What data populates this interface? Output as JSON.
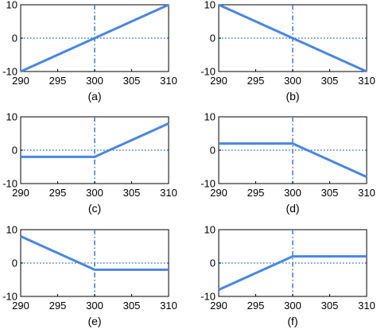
{
  "chart_data": [
    {
      "type": "line",
      "caption": "(a)",
      "xlim": [
        290,
        310
      ],
      "ylim": [
        -10,
        10
      ],
      "xticks": [
        290,
        295,
        300,
        305,
        310
      ],
      "yticks": [
        -10,
        0,
        10
      ],
      "reference_lines": {
        "h": 0,
        "v": 300
      },
      "series": [
        {
          "x": [
            290,
            310
          ],
          "y": [
            -10,
            10
          ]
        }
      ]
    },
    {
      "type": "line",
      "caption": "(b)",
      "xlim": [
        290,
        310
      ],
      "ylim": [
        -10,
        10
      ],
      "xticks": [
        290,
        295,
        300,
        305,
        310
      ],
      "yticks": [
        -10,
        0,
        10
      ],
      "reference_lines": {
        "h": 0,
        "v": 300
      },
      "series": [
        {
          "x": [
            290,
            310
          ],
          "y": [
            10,
            -10
          ]
        }
      ]
    },
    {
      "type": "line",
      "caption": "(c)",
      "xlim": [
        290,
        310
      ],
      "ylim": [
        -10,
        10
      ],
      "xticks": [
        290,
        295,
        300,
        305,
        310
      ],
      "yticks": [
        -10,
        0,
        10
      ],
      "reference_lines": {
        "h": 0,
        "v": 300
      },
      "series": [
        {
          "x": [
            290,
            300,
            310
          ],
          "y": [
            -2,
            -2,
            8
          ]
        }
      ]
    },
    {
      "type": "line",
      "caption": "(d)",
      "xlim": [
        290,
        310
      ],
      "ylim": [
        -10,
        10
      ],
      "xticks": [
        290,
        295,
        300,
        305,
        310
      ],
      "yticks": [
        -10,
        0,
        10
      ],
      "reference_lines": {
        "h": 0,
        "v": 300
      },
      "series": [
        {
          "x": [
            290,
            300,
            310
          ],
          "y": [
            2,
            2,
            -8
          ]
        }
      ]
    },
    {
      "type": "line",
      "caption": "(e)",
      "xlim": [
        290,
        310
      ],
      "ylim": [
        -10,
        10
      ],
      "xticks": [
        290,
        295,
        300,
        305,
        310
      ],
      "yticks": [
        -10,
        0,
        10
      ],
      "reference_lines": {
        "h": 0,
        "v": 300
      },
      "series": [
        {
          "x": [
            290,
            300,
            310
          ],
          "y": [
            8,
            -2,
            -2
          ]
        }
      ]
    },
    {
      "type": "line",
      "caption": "(f)",
      "xlim": [
        290,
        310
      ],
      "ylim": [
        -10,
        10
      ],
      "xticks": [
        290,
        295,
        300,
        305,
        310
      ],
      "yticks": [
        -10,
        0,
        10
      ],
      "reference_lines": {
        "h": 0,
        "v": 300
      },
      "series": [
        {
          "x": [
            290,
            300,
            310
          ],
          "y": [
            -8,
            2,
            2
          ]
        }
      ]
    }
  ],
  "colors": {
    "line": "#4a86e0",
    "reference": "#3a78d8"
  }
}
